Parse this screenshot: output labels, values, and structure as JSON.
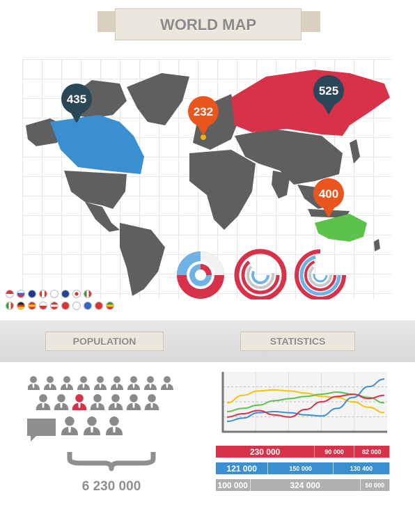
{
  "header": {
    "title": "WORLD MAP"
  },
  "map": {
    "pins": [
      {
        "value": "435",
        "region": "North America",
        "color": "#2b4657"
      },
      {
        "value": "232",
        "region": "Western Europe",
        "color": "#e8561e"
      },
      {
        "value": "525",
        "region": "Russia",
        "color": "#2b4657"
      },
      {
        "value": "400",
        "region": "Australia",
        "color": "#e8561e"
      }
    ],
    "highlight_colors": {
      "north_america": "#3a8fd0",
      "russia": "#d8324a",
      "australia": "#5cc24a",
      "europe_dot": "#f2b300"
    }
  },
  "sections": {
    "population_title": "POPULATION",
    "statistics_title": "STATISTICS"
  },
  "population": {
    "total": "6 230 000",
    "rows": [
      9,
      7,
      3
    ],
    "highlighted_index": 2
  },
  "statistics": {
    "rows": [
      {
        "color": "#d8324a",
        "cells": [
          "230 000",
          "90 000",
          "82 000"
        ],
        "weights": [
          230000,
          90000,
          82000
        ]
      },
      {
        "color": "#3a8fd0",
        "cells": [
          "121 000",
          "150 000",
          "130 400"
        ],
        "weights": [
          121000,
          150000,
          130400
        ]
      },
      {
        "color": "#b0b0b0",
        "cells": [
          "100 000",
          "324 000",
          "50 000"
        ],
        "weights": [
          100000,
          324000,
          50000
        ]
      }
    ]
  },
  "chart_data": {
    "type": "line",
    "x": [
      0,
      1,
      2,
      3,
      4,
      5,
      6,
      7,
      8,
      9,
      10
    ],
    "ylim": [
      0,
      100
    ],
    "series": [
      {
        "color": "#f2c40f",
        "values": [
          48,
          62,
          70,
          72,
          70,
          66,
          60,
          58,
          50,
          40,
          30
        ]
      },
      {
        "color": "#5cc24a",
        "values": [
          32,
          38,
          44,
          52,
          56,
          60,
          64,
          68,
          64,
          58,
          48
        ]
      },
      {
        "color": "#3a8fd0",
        "values": [
          14,
          20,
          30,
          32,
          30,
          26,
          24,
          38,
          58,
          78,
          92
        ]
      },
      {
        "color": "#d8324a",
        "values": [
          22,
          28,
          34,
          26,
          22,
          36,
          50,
          60,
          64,
          56,
          62
        ]
      }
    ],
    "grid": true
  }
}
